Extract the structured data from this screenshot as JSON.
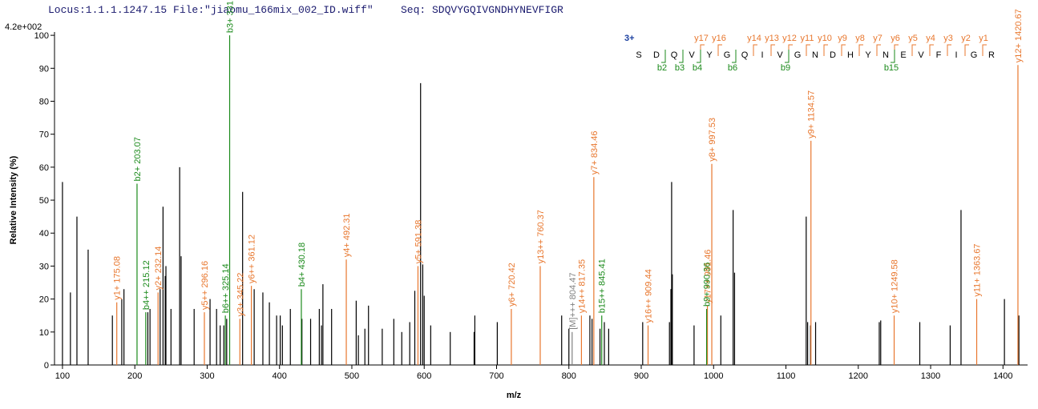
{
  "header": {
    "locus": "Locus:1.1.1.1247.15 File:\"jiaomu_166mix_002_ID.wiff\"",
    "seq": "Seq: SDQVYGQIVGNDHYNEVFIGR"
  },
  "chart_data": {
    "type": "spectrum",
    "y_max_label": "4.2e+002",
    "x_label": "m/z",
    "y_label": "Relative  Intensity (%)",
    "xlim": [
      89,
      1434
    ],
    "ylim": [
      0,
      101
    ],
    "xticks": [
      100,
      200,
      300,
      400,
      500,
      600,
      700,
      800,
      900,
      1000,
      1100,
      1200,
      1300,
      1400
    ],
    "yticks": [
      0,
      10,
      20,
      30,
      40,
      50,
      60,
      70,
      80,
      90,
      100
    ],
    "peaks": {
      "color": "#000000",
      "x": [
        100,
        111,
        120,
        135.5,
        169,
        182,
        185,
        218,
        221,
        235,
        239,
        242,
        243,
        250,
        262,
        264,
        282,
        304,
        313,
        318,
        323,
        327,
        349,
        365,
        377,
        386,
        396,
        401,
        404,
        415,
        431,
        443,
        455,
        458,
        460,
        472,
        506,
        509,
        518,
        523,
        542,
        558,
        569,
        580,
        587,
        595,
        598,
        600,
        609,
        636,
        669,
        670,
        701,
        790,
        800,
        829,
        832,
        843,
        849,
        855,
        902,
        939,
        941,
        942,
        943,
        973,
        1010,
        1027,
        1029,
        1128,
        1130,
        1134,
        1141,
        1229,
        1231,
        1285,
        1327,
        1342,
        1402,
        1422
      ],
      "values": [
        55.5,
        22,
        45,
        35,
        15,
        20,
        23,
        16,
        17,
        23,
        48,
        27,
        30,
        17,
        60,
        33,
        17,
        20,
        17,
        12,
        12,
        14,
        52.5,
        23,
        22,
        19,
        15,
        15,
        12,
        17,
        14,
        14,
        17,
        12,
        24.5,
        17,
        19.5,
        9,
        11,
        18,
        11,
        14,
        10,
        13,
        22.5,
        85.5,
        30.5,
        21,
        12,
        10,
        10,
        15,
        13,
        15,
        11,
        15,
        14,
        11,
        13,
        11,
        13,
        13,
        23,
        55.5,
        27.5,
        12,
        15,
        47,
        28,
        45,
        13,
        12,
        13,
        13,
        13.5,
        13,
        12,
        47,
        20,
        15
      ]
    },
    "annotated_peaks": {
      "x": [
        175.08,
        232.14,
        296.16,
        345.22,
        361.12,
        492.31,
        591.38,
        720.42,
        760.37,
        817.35,
        834.46,
        909.44,
        991.46,
        997.53,
        1134.57,
        1249.58,
        1363.67,
        1420.67,
        203.07,
        215.12,
        325.14,
        331.1,
        430.18,
        845.41,
        990.36,
        804.47
      ],
      "values": [
        19,
        22,
        16,
        14,
        24,
        32,
        30,
        17,
        30,
        15,
        57,
        12,
        18,
        61,
        68,
        15,
        20,
        91,
        55,
        16,
        15,
        100,
        23,
        15,
        17,
        10
      ],
      "labels": [
        "y1+ 175.08",
        "y2+ 232.14",
        "y5++ 296.16",
        "y3+ 345.22",
        "y6++ 361.12",
        "y4+ 492.31",
        "y5+ 591.38",
        "y6+ 720.42",
        "y13++ 760.37",
        "y14++ 817.35",
        "y7+ 834.46",
        "y16++ 909.44",
        "y17++ 991.46",
        "y8+ 997.53",
        "y9+ 1134.57",
        "y10+ 1249.58",
        "y11+ 1363.67",
        "y12+ 1420.67",
        "b2+ 203.07",
        "b4++ 215.12",
        "b6++ 325.14",
        "b3+ 331.1",
        "b4+ 430.18",
        "b15++ 845.41",
        "b9+ 990.36",
        "[M]+++ 804.47"
      ],
      "colors": [
        "#e8772e",
        "#e8772e",
        "#e8772e",
        "#e8772e",
        "#e8772e",
        "#e8772e",
        "#e8772e",
        "#e8772e",
        "#e8772e",
        "#e8772e",
        "#e8772e",
        "#e8772e",
        "#e8772e",
        "#e8772e",
        "#e8772e",
        "#e8772e",
        "#e8772e",
        "#e8772e",
        "#1b8a1b",
        "#1b8a1b",
        "#1b8a1b",
        "#1b8a1b",
        "#1b8a1b",
        "#1b8a1b",
        "#1b8a1b",
        "#808080"
      ]
    }
  },
  "sequence_diagram": {
    "charge": "3+",
    "residues": [
      "S",
      "D",
      "Q",
      "V",
      "Y",
      "G",
      "Q",
      "I",
      "V",
      "G",
      "N",
      "D",
      "H",
      "Y",
      "N",
      "E",
      "V",
      "F",
      "I",
      "G",
      "R"
    ],
    "y_ions": [
      "y17",
      "y16",
      "y14",
      "y13",
      "y12",
      "y11",
      "y10",
      "y9",
      "y8",
      "y7",
      "y6",
      "y5",
      "y4",
      "y3",
      "y2",
      "y1"
    ],
    "b_ions": [
      "b2",
      "b3",
      "b4",
      "b6",
      "b9",
      "b15"
    ]
  }
}
